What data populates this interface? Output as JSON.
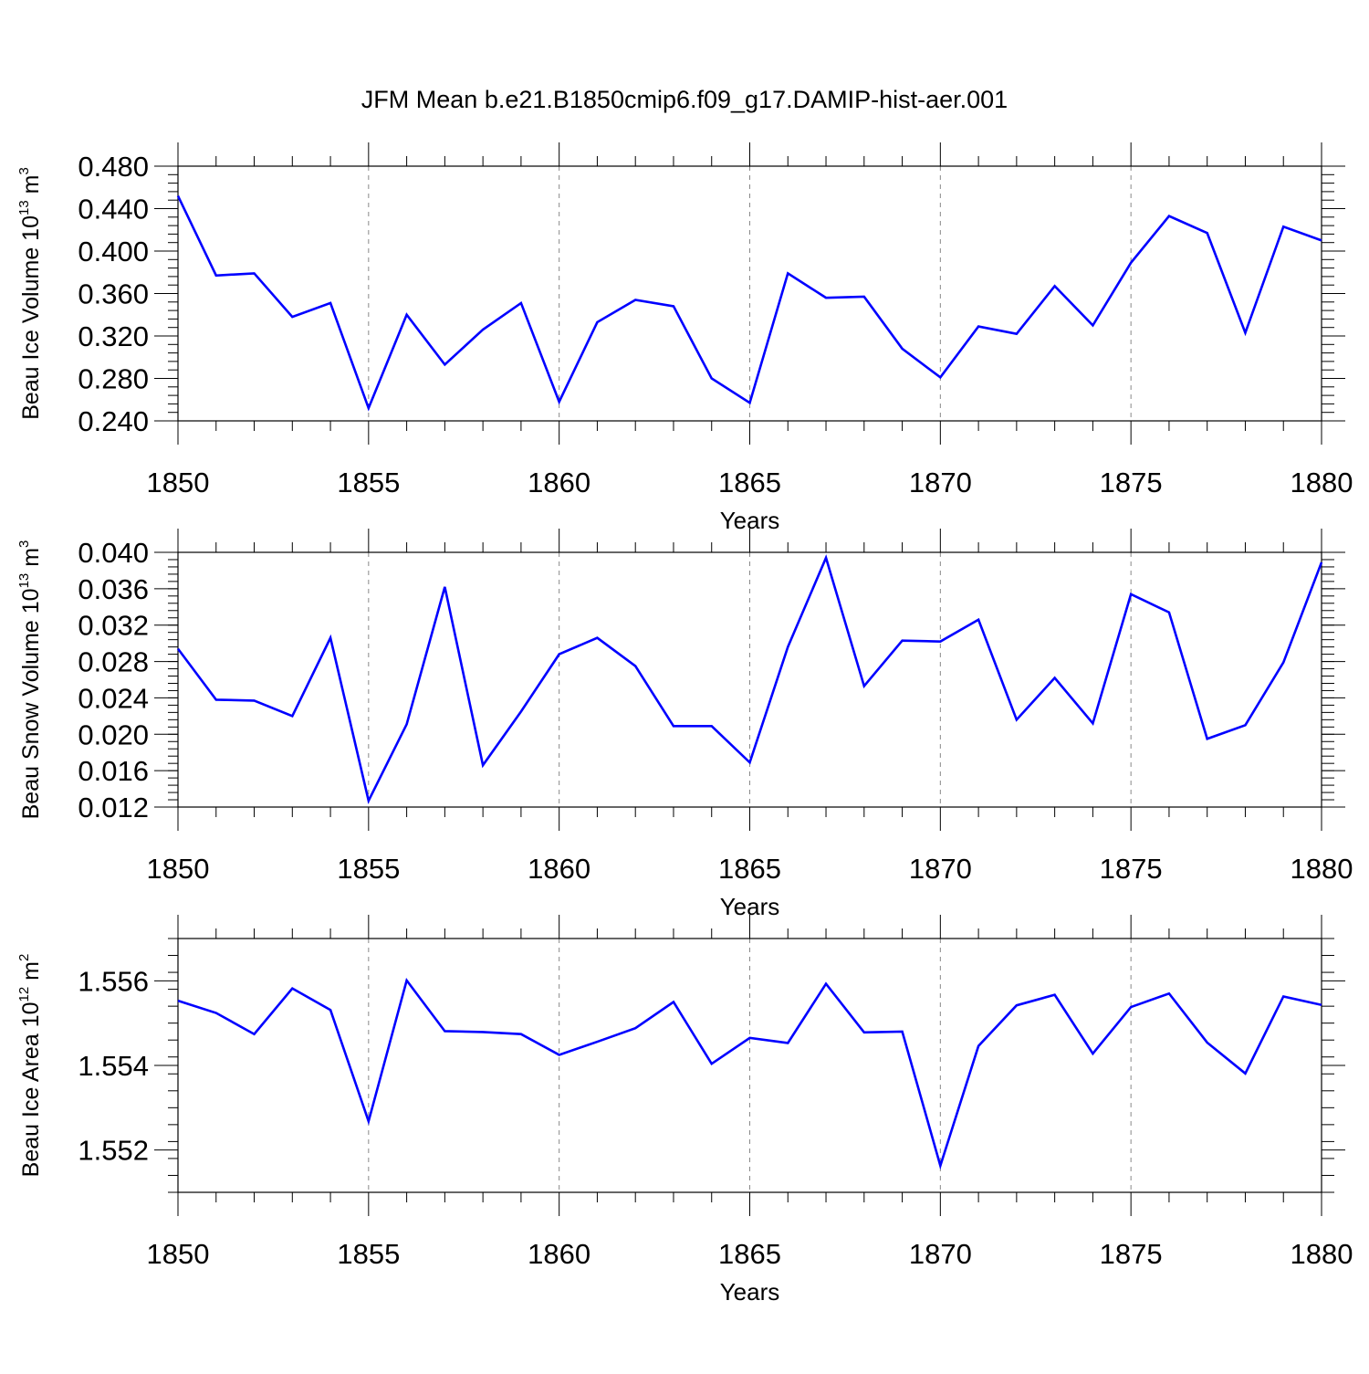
{
  "figure_title": "JFM Mean b.e21.B1850cmip6.f09_g17.DAMIP-hist-aer.001",
  "colors": {
    "series": "#0000ff",
    "grid": "#888888",
    "axis": "#000000"
  },
  "chart_data": [
    {
      "type": "line",
      "title": "JFM Mean b.e21.B1850cmip6.f09_g17.DAMIP-hist-aer.001",
      "ylabel": {
        "prefix": "Beau Ice Volume 10",
        "exp": "13",
        "unit": " m",
        "unit_exp": "3"
      },
      "xlabel": "Years",
      "xlim": [
        1850,
        1880
      ],
      "ylim": [
        0.24,
        0.48
      ],
      "x_ticks": [
        "1850",
        "1855",
        "1860",
        "1865",
        "1870",
        "1875",
        "1880"
      ],
      "y_ticks": [
        "0.240",
        "0.280",
        "0.320",
        "0.360",
        "0.400",
        "0.440",
        "0.480"
      ],
      "grid": "vertical-dashed",
      "x": [
        1850,
        1851,
        1852,
        1853,
        1854,
        1855,
        1856,
        1857,
        1858,
        1859,
        1860,
        1861,
        1862,
        1863,
        1864,
        1865,
        1866,
        1867,
        1868,
        1869,
        1870,
        1871,
        1872,
        1873,
        1874,
        1875,
        1876,
        1877,
        1878,
        1879,
        1880
      ],
      "values": [
        0.452,
        0.377,
        0.379,
        0.338,
        0.351,
        0.252,
        0.34,
        0.293,
        0.326,
        0.351,
        0.258,
        0.333,
        0.354,
        0.348,
        0.28,
        0.257,
        0.379,
        0.356,
        0.357,
        0.308,
        0.281,
        0.329,
        0.322,
        0.367,
        0.33,
        0.389,
        0.433,
        0.417,
        0.323,
        0.423,
        0.41
      ]
    },
    {
      "type": "line",
      "ylabel": {
        "prefix": "Beau Snow Volume 10",
        "exp": "13",
        "unit": " m",
        "unit_exp": "3"
      },
      "xlabel": "Years",
      "xlim": [
        1850,
        1880
      ],
      "ylim": [
        0.012,
        0.04
      ],
      "x_ticks": [
        "1850",
        "1855",
        "1860",
        "1865",
        "1870",
        "1875",
        "1880"
      ],
      "y_ticks": [
        "0.012",
        "0.016",
        "0.020",
        "0.024",
        "0.028",
        "0.032",
        "0.036",
        "0.040"
      ],
      "grid": "vertical-dashed",
      "x": [
        1850,
        1851,
        1852,
        1853,
        1854,
        1855,
        1856,
        1857,
        1858,
        1859,
        1860,
        1861,
        1862,
        1863,
        1864,
        1865,
        1866,
        1867,
        1868,
        1869,
        1870,
        1871,
        1872,
        1873,
        1874,
        1875,
        1876,
        1877,
        1878,
        1879,
        1880
      ],
      "values": [
        0.0294,
        0.0238,
        0.0237,
        0.022,
        0.0306,
        0.0127,
        0.0211,
        0.0362,
        0.0166,
        0.0225,
        0.0288,
        0.0306,
        0.0275,
        0.0209,
        0.0209,
        0.0169,
        0.0296,
        0.0394,
        0.0253,
        0.0303,
        0.0302,
        0.0326,
        0.0216,
        0.0262,
        0.0212,
        0.0354,
        0.0334,
        0.0195,
        0.021,
        0.0279,
        0.0389
      ]
    },
    {
      "type": "line",
      "ylabel": {
        "prefix": "Beau Ice Area 10",
        "exp": "12",
        "unit": " m",
        "unit_exp": "2"
      },
      "xlabel": "Years",
      "xlim": [
        1850,
        1880
      ],
      "ylim": [
        1.551,
        1.557
      ],
      "x_ticks": [
        "1850",
        "1855",
        "1860",
        "1865",
        "1870",
        "1875",
        "1880"
      ],
      "y_ticks": [
        "1.552",
        "1.554",
        "1.556"
      ],
      "grid": "vertical-dashed",
      "x": [
        1850,
        1851,
        1852,
        1853,
        1854,
        1855,
        1856,
        1857,
        1858,
        1859,
        1860,
        1861,
        1862,
        1863,
        1864,
        1865,
        1866,
        1867,
        1868,
        1869,
        1870,
        1871,
        1872,
        1873,
        1874,
        1875,
        1876,
        1877,
        1878,
        1879,
        1880
      ],
      "values": [
        1.55553,
        1.55524,
        1.55474,
        1.55582,
        1.55531,
        1.55268,
        1.55601,
        1.55481,
        1.55479,
        1.55474,
        1.55425,
        1.55456,
        1.55488,
        1.5555,
        1.55404,
        1.55465,
        1.55453,
        1.55593,
        1.55478,
        1.5548,
        1.55163,
        1.55446,
        1.55542,
        1.55567,
        1.55428,
        1.55538,
        1.5557,
        1.55454,
        1.55381,
        1.55563,
        1.55543
      ]
    }
  ]
}
